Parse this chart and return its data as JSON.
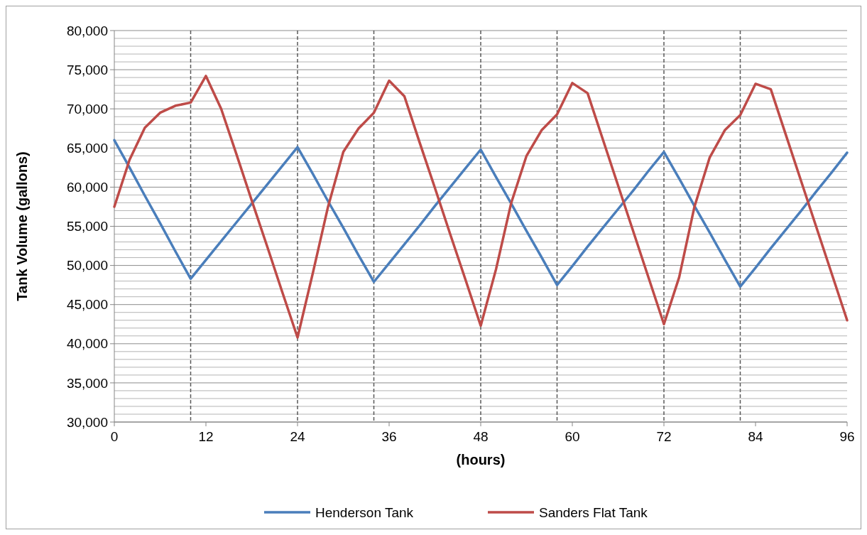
{
  "chart_data": {
    "type": "line",
    "xlabel": "(hours)",
    "ylabel": "Tank Volume (gallons)",
    "x": [
      0,
      2,
      4,
      6,
      8,
      10,
      12,
      14,
      16,
      18,
      20,
      22,
      24,
      26,
      28,
      30,
      32,
      34,
      36,
      38,
      40,
      42,
      44,
      46,
      48,
      50,
      52,
      54,
      56,
      58,
      60,
      62,
      64,
      66,
      68,
      70,
      72,
      74,
      76,
      78,
      80,
      82,
      84,
      86,
      88,
      90,
      92,
      94,
      96
    ],
    "series": [
      {
        "name": "Henderson Tank",
        "color": "#4a7ebb",
        "values": [
          66000,
          62500,
          58900,
          55400,
          51800,
          48300,
          50700,
          53100,
          55500,
          57900,
          60300,
          62700,
          65100,
          61700,
          58200,
          54800,
          51300,
          47900,
          50300,
          52700,
          55100,
          57600,
          60000,
          62400,
          64800,
          61300,
          57900,
          54400,
          51000,
          47500,
          49900,
          52400,
          54800,
          57200,
          59600,
          62100,
          64500,
          61100,
          57600,
          54200,
          50700,
          47300,
          49700,
          52200,
          54600,
          57000,
          59500,
          61900,
          64400
        ]
      },
      {
        "name": "Sanders Flat Tank",
        "color": "#be4b48",
        "values": [
          57500,
          63500,
          67600,
          69500,
          70400,
          70800,
          74200,
          70000,
          64200,
          58300,
          52500,
          46600,
          40800,
          49000,
          57500,
          64500,
          67500,
          69500,
          73600,
          71600,
          65700,
          59900,
          54000,
          48200,
          42300,
          49500,
          58000,
          64000,
          67300,
          69300,
          73300,
          72000,
          66100,
          60200,
          54300,
          48400,
          42500,
          48500,
          57500,
          63800,
          67300,
          69200,
          73200,
          72500,
          66600,
          60700,
          54800,
          48900,
          43000
        ]
      }
    ],
    "xlim": [
      0,
      96
    ],
    "xticks": [
      0,
      12,
      24,
      36,
      48,
      60,
      72,
      84,
      96
    ],
    "ylim": [
      30000,
      80000
    ],
    "yticks": [
      {
        "value": 30000,
        "label": "30,000"
      },
      {
        "value": 31000,
        "label": null
      },
      {
        "value": 32000,
        "label": null
      },
      {
        "value": 33000,
        "label": null
      },
      {
        "value": 34000,
        "label": null
      },
      {
        "value": 35000,
        "label": "35,000"
      },
      {
        "value": 36000,
        "label": null
      },
      {
        "value": 37000,
        "label": null
      },
      {
        "value": 38000,
        "label": null
      },
      {
        "value": 39000,
        "label": null
      },
      {
        "value": 40000,
        "label": "40,000"
      },
      {
        "value": 41000,
        "label": null
      },
      {
        "value": 42000,
        "label": null
      },
      {
        "value": 43000,
        "label": null
      },
      {
        "value": 44000,
        "label": null
      },
      {
        "value": 45000,
        "label": "45,000"
      },
      {
        "value": 46000,
        "label": null
      },
      {
        "value": 47000,
        "label": null
      },
      {
        "value": 48000,
        "label": null
      },
      {
        "value": 49000,
        "label": null
      },
      {
        "value": 50000,
        "label": "50,000"
      },
      {
        "value": 51000,
        "label": null
      },
      {
        "value": 52000,
        "label": null
      },
      {
        "value": 53000,
        "label": null
      },
      {
        "value": 54000,
        "label": null
      },
      {
        "value": 55000,
        "label": "55,000"
      },
      {
        "value": 56000,
        "label": null
      },
      {
        "value": 57000,
        "label": null
      },
      {
        "value": 58000,
        "label": null
      },
      {
        "value": 59000,
        "label": null
      },
      {
        "value": 60000,
        "label": "60,000"
      },
      {
        "value": 61000,
        "label": null
      },
      {
        "value": 62000,
        "label": null
      },
      {
        "value": 63000,
        "label": null
      },
      {
        "value": 64000,
        "label": null
      },
      {
        "value": 65000,
        "label": "65,000"
      },
      {
        "value": 66000,
        "label": null
      },
      {
        "value": 67000,
        "label": null
      },
      {
        "value": 68000,
        "label": null
      },
      {
        "value": 69000,
        "label": null
      },
      {
        "value": 70000,
        "label": "70,000"
      },
      {
        "value": 71000,
        "label": null
      },
      {
        "value": 72000,
        "label": null
      },
      {
        "value": 73000,
        "label": null
      },
      {
        "value": 74000,
        "label": null
      },
      {
        "value": 75000,
        "label": "75,000"
      },
      {
        "value": 76000,
        "label": null
      },
      {
        "value": 77000,
        "label": null
      },
      {
        "value": 78000,
        "label": null
      },
      {
        "value": 79000,
        "label": null
      },
      {
        "value": 80000,
        "label": "80,000"
      }
    ],
    "ref_lines": [
      {
        "axis": "x",
        "value": 10,
        "color": "#595959",
        "line_style": "dashed"
      },
      {
        "axis": "x",
        "value": 24,
        "color": "#595959",
        "line_style": "dashed"
      },
      {
        "axis": "x",
        "value": 34,
        "color": "#595959",
        "line_style": "dashed"
      },
      {
        "axis": "x",
        "value": 48,
        "color": "#595959",
        "line_style": "dashed"
      },
      {
        "axis": "x",
        "value": 58,
        "color": "#595959",
        "line_style": "dashed"
      },
      {
        "axis": "x",
        "value": 72,
        "color": "#595959",
        "line_style": "dashed"
      },
      {
        "axis": "x",
        "value": 82,
        "color": "#595959",
        "line_style": "dashed"
      }
    ],
    "grid": "y",
    "legend": "bottom",
    "marker": "none",
    "line_style": "solid"
  }
}
